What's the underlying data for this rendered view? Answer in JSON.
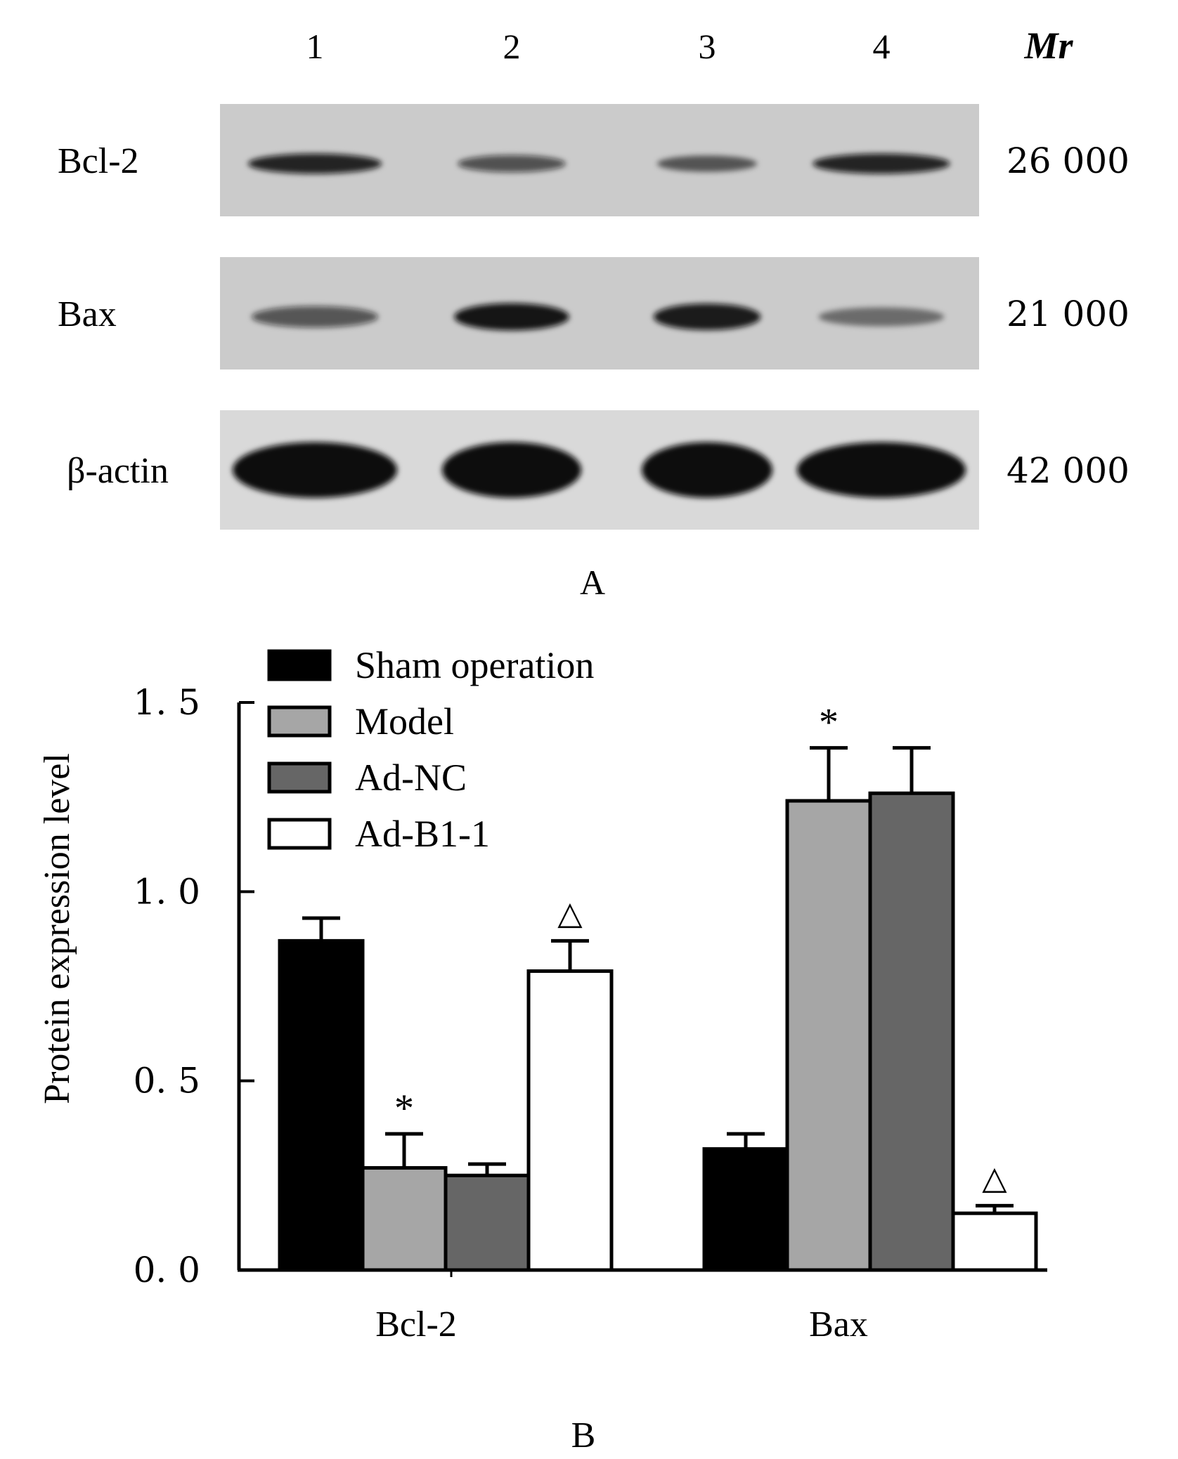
{
  "panel_a": {
    "label": "A",
    "lane_labels": [
      "1",
      "2",
      "3",
      "4"
    ],
    "mr_label": "Mr",
    "blots": [
      {
        "protein": "Bcl-2",
        "mr": "26  000",
        "band_intensity": [
          0.85,
          0.55,
          0.45,
          0.85
        ]
      },
      {
        "protein": "Bax",
        "mr": "21  000",
        "band_intensity": [
          0.5,
          0.95,
          0.9,
          0.3
        ]
      },
      {
        "protein": "β-actin",
        "mr": "42  000",
        "band_intensity": [
          1.0,
          1.0,
          1.0,
          1.0
        ]
      }
    ],
    "colors": {
      "membrane_upper": "#cbcbcb",
      "membrane_lower": "#d9d9d9",
      "band": "#0b0b0b"
    }
  },
  "panel_b": {
    "label": "B",
    "chart_data": {
      "type": "bar",
      "ylabel": "Protein expression level",
      "xlabel": "",
      "categories": [
        "Bcl-2",
        "Bax"
      ],
      "ylim": [
        0.0,
        1.5
      ],
      "yticks": [
        "0. 0",
        "0. 5",
        "1. 0",
        "1. 5"
      ],
      "ytick_values": [
        0.0,
        0.5,
        1.0,
        1.5
      ],
      "series": [
        {
          "name": "Sham operation",
          "color": "#000000",
          "values": [
            0.87,
            0.32
          ],
          "errors": [
            0.06,
            0.04
          ],
          "markers": [
            "",
            ""
          ]
        },
        {
          "name": "Model",
          "color": "#a6a6a6",
          "values": [
            0.27,
            1.24
          ],
          "errors": [
            0.09,
            0.14
          ],
          "markers": [
            "*",
            "*"
          ]
        },
        {
          "name": "Ad-NC",
          "color": "#666666",
          "values": [
            0.25,
            1.26
          ],
          "errors": [
            0.03,
            0.12
          ],
          "markers": [
            "",
            ""
          ]
        },
        {
          "name": "Ad-B1-1",
          "color": "#ffffff",
          "values": [
            0.79,
            0.15
          ],
          "errors": [
            0.08,
            0.02
          ],
          "markers": [
            "△",
            "△"
          ]
        }
      ],
      "grid": false,
      "legend_position": "top-left"
    }
  }
}
